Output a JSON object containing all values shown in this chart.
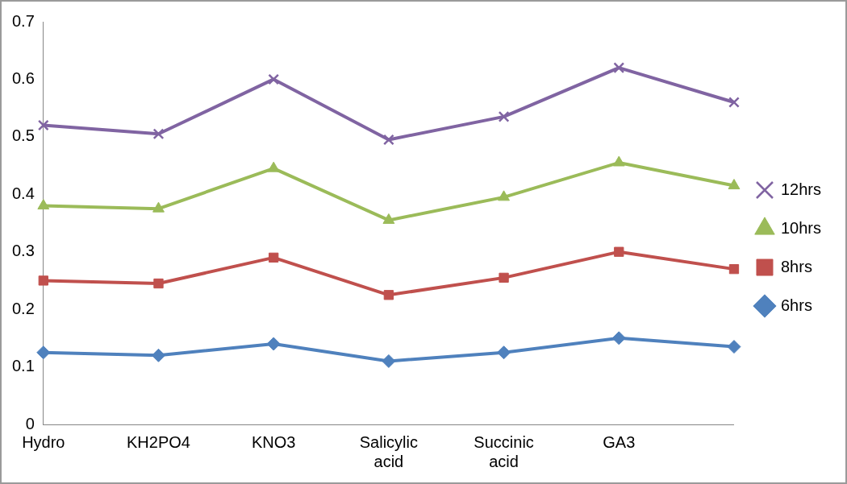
{
  "chart_data": {
    "type": "line",
    "categories": [
      "Hydro",
      "KH2PO4",
      "KNO3",
      "Salicylic acid",
      "Succinic acid",
      "GA3",
      null
    ],
    "series": [
      {
        "name": "6hrs",
        "color": "#4f81bd",
        "marker": "diamond",
        "values": [
          0.125,
          0.12,
          0.14,
          0.11,
          0.125,
          0.15,
          0.135
        ]
      },
      {
        "name": "8hrs",
        "color": "#c0504d",
        "marker": "square",
        "values": [
          0.25,
          0.245,
          0.29,
          0.225,
          0.255,
          0.3,
          0.27
        ]
      },
      {
        "name": "10hrs",
        "color": "#9bbb59",
        "marker": "triangle",
        "values": [
          0.38,
          0.375,
          0.445,
          0.355,
          0.395,
          0.455,
          0.415
        ]
      },
      {
        "name": "12hrs",
        "color": "#8064a2",
        "marker": "cross",
        "values": [
          0.52,
          0.505,
          0.6,
          0.495,
          0.535,
          0.62,
          0.56
        ]
      }
    ],
    "ylim": [
      0,
      0.7
    ],
    "yticks": [
      0,
      0.1,
      0.2,
      0.3,
      0.4,
      0.5,
      0.6,
      0.7
    ],
    "grid": false,
    "legend": "right",
    "line_style": "solid"
  }
}
